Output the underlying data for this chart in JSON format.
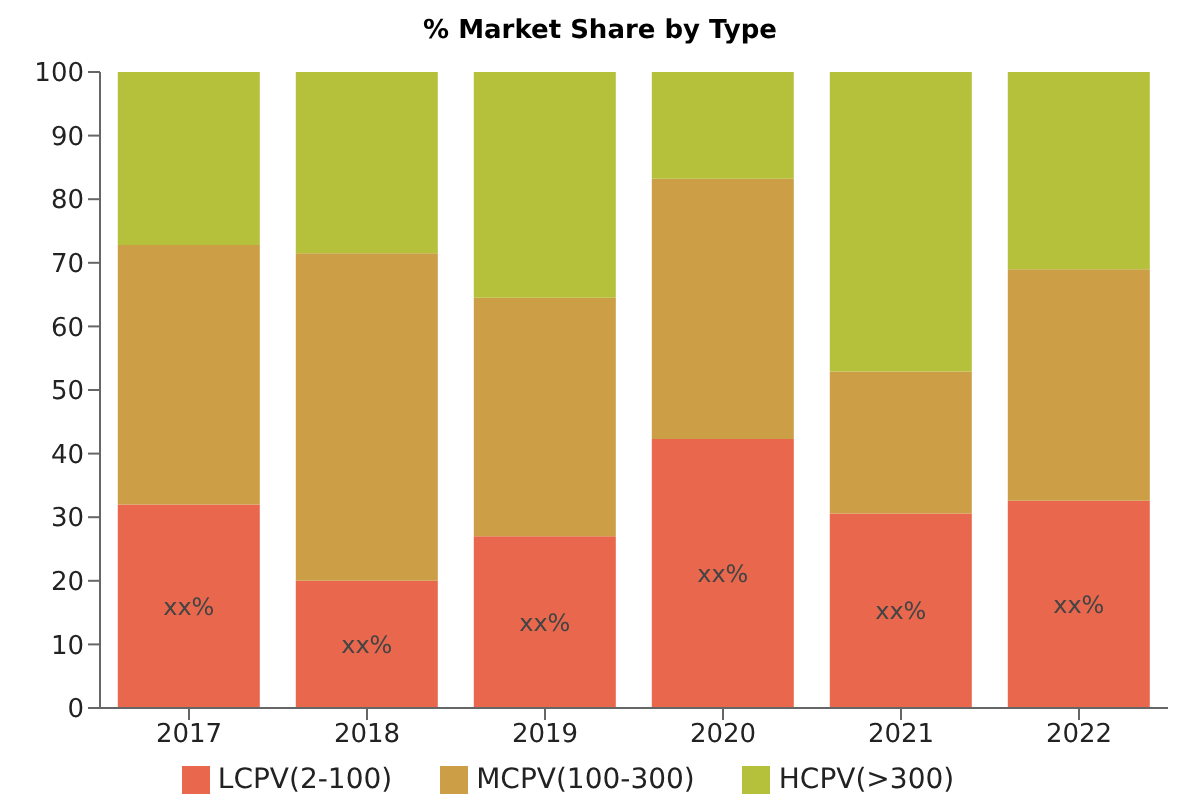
{
  "chart_data": {
    "type": "bar",
    "title": "% Market Share by Type",
    "stacked": true,
    "categories": [
      "2017",
      "2018",
      "2019",
      "2020",
      "2021",
      "2022"
    ],
    "series": [
      {
        "name": "LCPV(2-100)",
        "color": "#e8674d",
        "values": [
          32,
          20,
          27,
          42.3,
          30.6,
          32.6
        ],
        "value_labels": [
          "xx%",
          "xx%",
          "xx%",
          "xx%",
          "xx%",
          "xx%"
        ]
      },
      {
        "name": "MCPV(100-300)",
        "color": "#cc9e45",
        "values": [
          40.8,
          51.5,
          37.5,
          40.9,
          22.3,
          36.4
        ]
      },
      {
        "name": "HCPV(>300)",
        "color": "#b5c03b",
        "values": [
          27.2,
          28.5,
          35.5,
          16.8,
          47.1,
          31
        ]
      }
    ],
    "ylim": [
      0,
      100
    ],
    "yticks": [
      0,
      10,
      20,
      30,
      40,
      50,
      60,
      70,
      80,
      90,
      100
    ],
    "grid": false,
    "legend": "bottom"
  }
}
